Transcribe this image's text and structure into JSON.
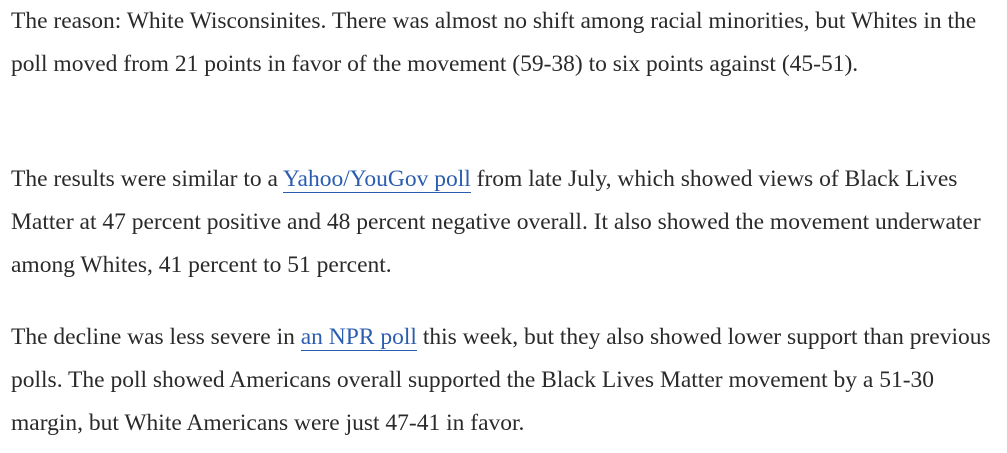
{
  "article": {
    "paragraphs": [
      {
        "before": "The reason: White Wisconsinites. There was almost no shift among racial minorities, but Whites in the poll moved from 21 points in favor of the movement (59-38) to six points against (45-51).",
        "link": "",
        "after": ""
      },
      {
        "before": "The results were similar to a ",
        "link": "Yahoo/YouGov poll",
        "after": " from late July, which showed views of Black Lives Matter at 47 percent positive and 48 percent negative overall. It also showed the movement underwater among Whites, 41 percent to 51 percent."
      },
      {
        "before": "The decline was less severe in ",
        "link": "an NPR poll",
        "after": " this week, but they also showed lower support than previous polls. The poll showed Americans overall supported the Black Lives Matter movement by a 51-30 margin, but White Americans were just 47-41 in favor."
      }
    ]
  },
  "colors": {
    "text": "#2a2a2a",
    "link": "#2a5db0",
    "background": "#ffffff"
  }
}
